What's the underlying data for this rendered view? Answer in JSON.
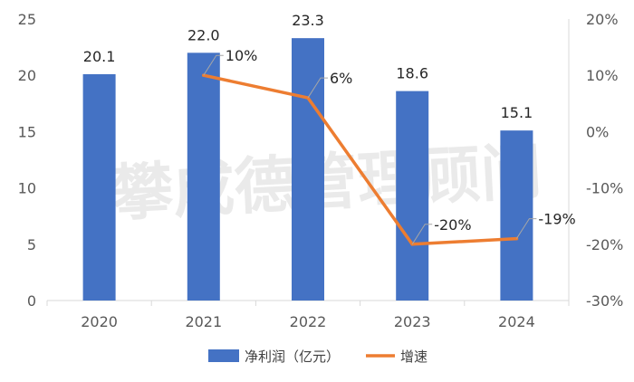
{
  "watermark": "攀成德管理顾问",
  "chart_data": {
    "type": "bar",
    "categories": [
      "2020",
      "2021",
      "2022",
      "2023",
      "2024"
    ],
    "series": [
      {
        "name": "净利润（亿元）",
        "type": "bar",
        "axis": "left",
        "values": [
          20.1,
          22.0,
          23.3,
          18.6,
          15.1
        ],
        "labels": [
          "20.1",
          "22.0",
          "23.3",
          "18.6",
          "15.1"
        ]
      },
      {
        "name": "增速",
        "type": "line",
        "axis": "right",
        "values": [
          null,
          10,
          6,
          -20,
          -19
        ],
        "labels": [
          "",
          "10%",
          "6%",
          "-20%",
          "-19%"
        ]
      }
    ],
    "y_left": {
      "min": 0,
      "max": 25,
      "ticks": [
        0,
        5,
        10,
        15,
        20,
        25
      ],
      "tick_labels": [
        "0",
        "5",
        "10",
        "15",
        "20",
        "25"
      ]
    },
    "y_right": {
      "min": -30,
      "max": 20,
      "ticks": [
        -30,
        -20,
        -10,
        0,
        10,
        20
      ],
      "tick_labels": [
        "-30%",
        "-20%",
        "-10%",
        "0%",
        "10%",
        "20%"
      ]
    },
    "colors": {
      "bar": "#4472C4",
      "line": "#ED7D31"
    },
    "legend": "bottom",
    "grid": false
  }
}
